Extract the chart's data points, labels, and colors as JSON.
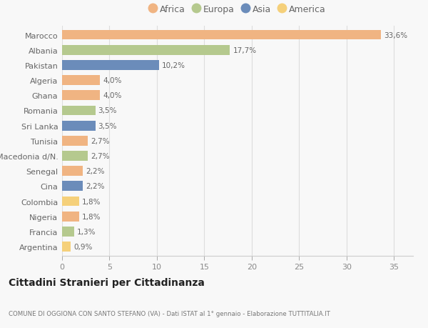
{
  "title": "Cittadini Stranieri per Cittadinanza",
  "subtitle": "COMUNE DI OGGIONA CON SANTO STEFANO (VA) - Dati ISTAT al 1° gennaio - Elaborazione TUTTITALIA.IT",
  "countries": [
    "Marocco",
    "Albania",
    "Pakistan",
    "Algeria",
    "Ghana",
    "Romania",
    "Sri Lanka",
    "Tunisia",
    "Macedonia d/N.",
    "Senegal",
    "Cina",
    "Colombia",
    "Nigeria",
    "Francia",
    "Argentina"
  ],
  "values": [
    33.6,
    17.7,
    10.2,
    4.0,
    4.0,
    3.5,
    3.5,
    2.7,
    2.7,
    2.2,
    2.2,
    1.8,
    1.8,
    1.3,
    0.9
  ],
  "labels": [
    "33,6%",
    "17,7%",
    "10,2%",
    "4,0%",
    "4,0%",
    "3,5%",
    "3,5%",
    "2,7%",
    "2,7%",
    "2,2%",
    "2,2%",
    "1,8%",
    "1,8%",
    "1,3%",
    "0,9%"
  ],
  "continents": [
    "Africa",
    "Europa",
    "Asia",
    "Africa",
    "Africa",
    "Europa",
    "Asia",
    "Africa",
    "Europa",
    "Africa",
    "Asia",
    "America",
    "Africa",
    "Europa",
    "America"
  ],
  "continent_colors": {
    "Africa": "#f0b482",
    "Europa": "#b5c98e",
    "Asia": "#6b8cba",
    "America": "#f5d07a"
  },
  "legend_order": [
    "Africa",
    "Europa",
    "Asia",
    "America"
  ],
  "background_color": "#f8f8f8",
  "xlim": [
    0,
    37
  ],
  "xticks": [
    0,
    5,
    10,
    15,
    20,
    25,
    30,
    35
  ]
}
